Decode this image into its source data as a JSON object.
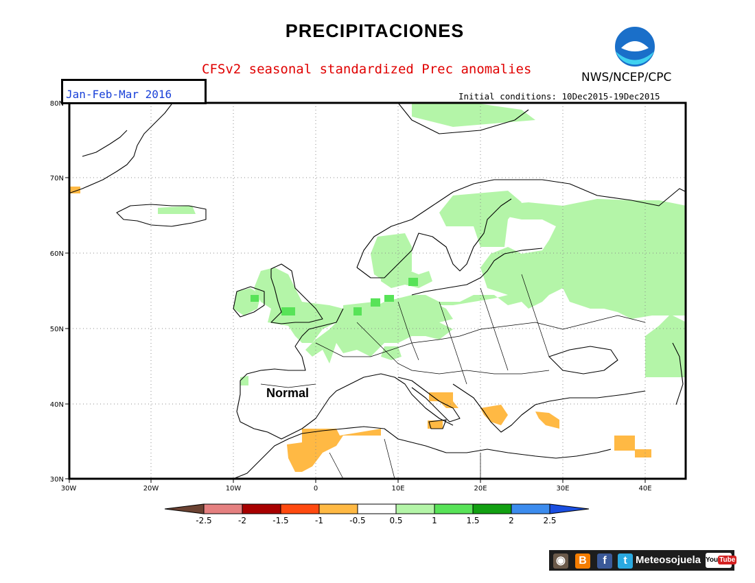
{
  "title": "PRECIPITACIONES",
  "subtitle": "CFSv2 seasonal standardized Prec anomalies",
  "agency": "NWS/NCEP/CPC",
  "period": "Jan-Feb-Mar 2016",
  "initial_conditions": "Initial conditions: 10Dec2015-19Dec2015",
  "map_label": "Normal",
  "colors": {
    "title_red": "#e00000",
    "period_blue": "#1840d8",
    "noaa_blue": "#1a6fc9",
    "noaa_cyan": "#3fd1f0",
    "light_green": "#b4f5a8",
    "mid_green": "#58e358",
    "orange": "#ffb944"
  },
  "axes": {
    "x_ticks": [
      "30W",
      "20W",
      "10W",
      "0",
      "10E",
      "20E",
      "30E",
      "40E"
    ],
    "y_ticks": [
      "30N",
      "40N",
      "50N",
      "60N",
      "70N",
      "80N"
    ]
  },
  "colorbar": {
    "labels": [
      "-2.5",
      "-2",
      "-1.5",
      "-1",
      "-0.5",
      "0.5",
      "1",
      "1.5",
      "2",
      "2.5"
    ],
    "colors": [
      "#6b4232",
      "#e58080",
      "#a80000",
      "#ff4a10",
      "#ffb944",
      "#ffffff",
      "#b4f5a8",
      "#58e358",
      "#12a012",
      "#3c8cee",
      "#1a4ee0"
    ]
  },
  "social": {
    "label": "Meteosojuela",
    "icons": [
      "camera-icon",
      "blogger-icon",
      "facebook-icon",
      "twitter-icon",
      "youtube-icon"
    ],
    "youtube_text": "You",
    "youtube_tube": "Tube"
  }
}
